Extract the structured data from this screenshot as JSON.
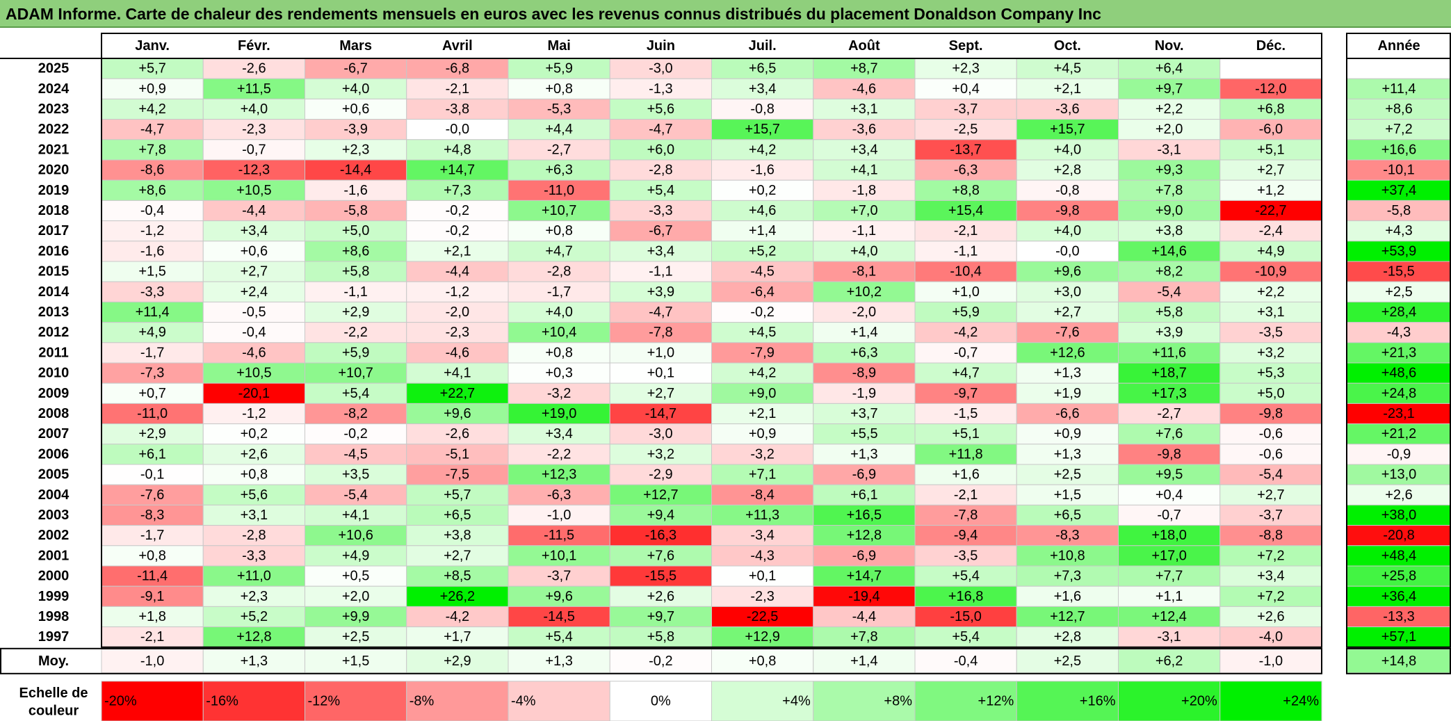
{
  "title": "ADAM Informe. Carte de chaleur des rendements mensuels en euros avec les revenus connus distribués du placement Donaldson Company Inc",
  "chart_data": {
    "type": "heatmap",
    "months": [
      "Janv.",
      "Févr.",
      "Mars",
      "Avril",
      "Mai",
      "Juin",
      "Juil.",
      "Août",
      "Sept.",
      "Oct.",
      "Nov.",
      "Déc."
    ],
    "year_header": "Année",
    "years": [
      "2025",
      "2024",
      "2023",
      "2022",
      "2021",
      "2020",
      "2019",
      "2018",
      "2017",
      "2016",
      "2015",
      "2014",
      "2013",
      "2012",
      "2011",
      "2010",
      "2009",
      "2008",
      "2007",
      "2006",
      "2005",
      "2004",
      "2003",
      "2002",
      "2001",
      "2000",
      "1999",
      "1998",
      "1997"
    ],
    "values": [
      [
        "+5,7",
        "-2,6",
        "-6,7",
        "-6,8",
        "+5,9",
        "-3,0",
        "+6,5",
        "+8,7",
        "+2,3",
        "+4,5",
        "+6,4",
        ""
      ],
      [
        "+0,9",
        "+11,5",
        "+4,0",
        "-2,1",
        "+0,8",
        "-1,3",
        "+3,4",
        "-4,6",
        "+0,4",
        "+2,1",
        "+9,7",
        "-12,0"
      ],
      [
        "+4,2",
        "+4,0",
        "+0,6",
        "-3,8",
        "-5,3",
        "+5,6",
        "-0,8",
        "+3,1",
        "-3,7",
        "-3,6",
        "+2,2",
        "+6,8"
      ],
      [
        "-4,7",
        "-2,3",
        "-3,9",
        "-0,0",
        "+4,4",
        "-4,7",
        "+15,7",
        "-3,6",
        "-2,5",
        "+15,7",
        "+2,0",
        "-6,0"
      ],
      [
        "+7,8",
        "-0,7",
        "+2,3",
        "+4,8",
        "-2,7",
        "+6,0",
        "+4,2",
        "+3,4",
        "-13,7",
        "+4,0",
        "-3,1",
        "+5,1"
      ],
      [
        "-8,6",
        "-12,3",
        "-14,4",
        "+14,7",
        "+6,3",
        "-2,8",
        "-1,6",
        "+4,1",
        "-6,3",
        "+2,8",
        "+9,3",
        "+2,7"
      ],
      [
        "+8,6",
        "+10,5",
        "-1,6",
        "+7,3",
        "-11,0",
        "+5,4",
        "+0,2",
        "-1,8",
        "+8,8",
        "-0,8",
        "+7,8",
        "+1,2"
      ],
      [
        "-0,4",
        "-4,4",
        "-5,8",
        "-0,2",
        "+10,7",
        "-3,3",
        "+4,6",
        "+7,0",
        "+15,4",
        "-9,8",
        "+9,0",
        "-22,7"
      ],
      [
        "-1,2",
        "+3,4",
        "+5,0",
        "-0,2",
        "+0,8",
        "-6,7",
        "+1,4",
        "-1,1",
        "-2,1",
        "+4,0",
        "+3,8",
        "-2,4"
      ],
      [
        "-1,6",
        "+0,6",
        "+8,6",
        "+2,1",
        "+4,7",
        "+3,4",
        "+5,2",
        "+4,0",
        "-1,1",
        "-0,0",
        "+14,6",
        "+4,9"
      ],
      [
        "+1,5",
        "+2,7",
        "+5,8",
        "-4,4",
        "-2,8",
        "-1,1",
        "-4,5",
        "-8,1",
        "-10,4",
        "+9,6",
        "+8,2",
        "-10,9"
      ],
      [
        "-3,3",
        "+2,4",
        "-1,1",
        "-1,2",
        "-1,7",
        "+3,9",
        "-6,4",
        "+10,2",
        "+1,0",
        "+3,0",
        "-5,4",
        "+2,2"
      ],
      [
        "+11,4",
        "-0,5",
        "+2,9",
        "-2,0",
        "+4,0",
        "-4,7",
        "-0,2",
        "-2,0",
        "+5,9",
        "+2,7",
        "+5,8",
        "+3,1"
      ],
      [
        "+4,9",
        "-0,4",
        "-2,2",
        "-2,3",
        "+10,4",
        "-7,8",
        "+4,5",
        "+1,4",
        "-4,2",
        "-7,6",
        "+3,9",
        "-3,5"
      ],
      [
        "-1,7",
        "-4,6",
        "+5,9",
        "-4,6",
        "+0,8",
        "+1,0",
        "-7,9",
        "+6,3",
        "-0,7",
        "+12,6",
        "+11,6",
        "+3,2"
      ],
      [
        "-7,3",
        "+10,5",
        "+10,7",
        "+4,1",
        "+0,3",
        "+0,1",
        "+4,2",
        "-8,9",
        "+4,7",
        "+1,3",
        "+18,7",
        "+5,3"
      ],
      [
        "+0,7",
        "-20,1",
        "+5,4",
        "+22,7",
        "-3,2",
        "+2,7",
        "+9,0",
        "-1,9",
        "-9,7",
        "+1,9",
        "+17,3",
        "+5,0"
      ],
      [
        "-11,0",
        "-1,2",
        "-8,2",
        "+9,6",
        "+19,0",
        "-14,7",
        "+2,1",
        "+3,7",
        "-1,5",
        "-6,6",
        "-2,7",
        "-9,8"
      ],
      [
        "+2,9",
        "+0,2",
        "-0,2",
        "-2,6",
        "+3,4",
        "-3,0",
        "+0,9",
        "+5,5",
        "+5,1",
        "+0,9",
        "+7,6",
        "-0,6"
      ],
      [
        "+6,1",
        "+2,6",
        "-4,5",
        "-5,1",
        "-2,2",
        "+3,2",
        "-3,2",
        "+1,3",
        "+11,8",
        "+1,3",
        "-9,8",
        "-0,6"
      ],
      [
        "-0,1",
        "+0,8",
        "+3,5",
        "-7,5",
        "+12,3",
        "-2,9",
        "+7,1",
        "-6,9",
        "+1,6",
        "+2,5",
        "+9,5",
        "-5,4"
      ],
      [
        "-7,6",
        "+5,6",
        "-5,4",
        "+5,7",
        "-6,3",
        "+12,7",
        "-8,4",
        "+6,1",
        "-2,1",
        "+1,5",
        "+0,4",
        "+2,7"
      ],
      [
        "-8,3",
        "+3,1",
        "+4,1",
        "+6,5",
        "-1,0",
        "+9,4",
        "+11,3",
        "+16,5",
        "-7,8",
        "+6,5",
        "-0,7",
        "-3,7"
      ],
      [
        "-1,7",
        "-2,8",
        "+10,6",
        "+3,8",
        "-11,5",
        "-16,3",
        "-3,4",
        "+12,8",
        "-9,4",
        "-8,3",
        "+18,0",
        "-8,8"
      ],
      [
        "+0,8",
        "-3,3",
        "+4,9",
        "+2,7",
        "+10,1",
        "+7,6",
        "-4,3",
        "-6,9",
        "-3,5",
        "+10,8",
        "+17,0",
        "+7,2"
      ],
      [
        "-11,4",
        "+11,0",
        "+0,5",
        "+8,5",
        "-3,7",
        "-15,5",
        "+0,1",
        "+14,7",
        "+5,4",
        "+7,3",
        "+7,7",
        "+3,4"
      ],
      [
        "-9,1",
        "+2,3",
        "+2,0",
        "+26,2",
        "+9,6",
        "+2,6",
        "-2,3",
        "-19,4",
        "+16,8",
        "+1,6",
        "+1,1",
        "+7,2"
      ],
      [
        "+1,8",
        "+5,2",
        "+9,9",
        "-4,2",
        "-14,5",
        "+9,7",
        "-22,5",
        "-4,4",
        "-15,0",
        "+12,7",
        "+12,4",
        "+2,6"
      ],
      [
        "-2,1",
        "+12,8",
        "+2,5",
        "+1,7",
        "+5,4",
        "+5,8",
        "+12,9",
        "+7,8",
        "+5,4",
        "+2,8",
        "-3,1",
        "-4,0"
      ]
    ],
    "annual": [
      "",
      "+11,4",
      "+8,6",
      "+7,2",
      "+16,6",
      "-10,1",
      "+37,4",
      "-5,8",
      "+4,3",
      "+53,9",
      "-15,5",
      "+2,5",
      "+28,4",
      "-4,3",
      "+21,3",
      "+48,6",
      "+24,8",
      "-23,1",
      "+21,2",
      "-0,9",
      "+13,0",
      "+2,6",
      "+38,0",
      "-20,8",
      "+48,4",
      "+25,8",
      "+36,4",
      "-13,3",
      "+57,1"
    ],
    "average_label": "Moy.",
    "averages": [
      "-1,0",
      "+1,3",
      "+1,5",
      "+2,9",
      "+1,3",
      "-0,2",
      "+0,8",
      "+1,4",
      "-0,4",
      "+2,5",
      "+6,2",
      "-1,0"
    ],
    "average_annual": "+14,8",
    "scale_label": [
      "Echelle de",
      "couleur"
    ],
    "scale": [
      "-20%",
      "-16%",
      "-12%",
      "-8%",
      "-4%",
      "0%",
      "+4%",
      "+8%",
      "+12%",
      "+16%",
      "+20%",
      "+24%"
    ],
    "scale_values": [
      -20,
      -16,
      -12,
      -8,
      -4,
      0,
      4,
      8,
      12,
      16,
      20,
      24
    ],
    "colors": {
      "negative_max": "#ff0000",
      "zero": "#ffffff",
      "positive_max": "#00f000",
      "title_bg": "#8fcf7c"
    }
  }
}
